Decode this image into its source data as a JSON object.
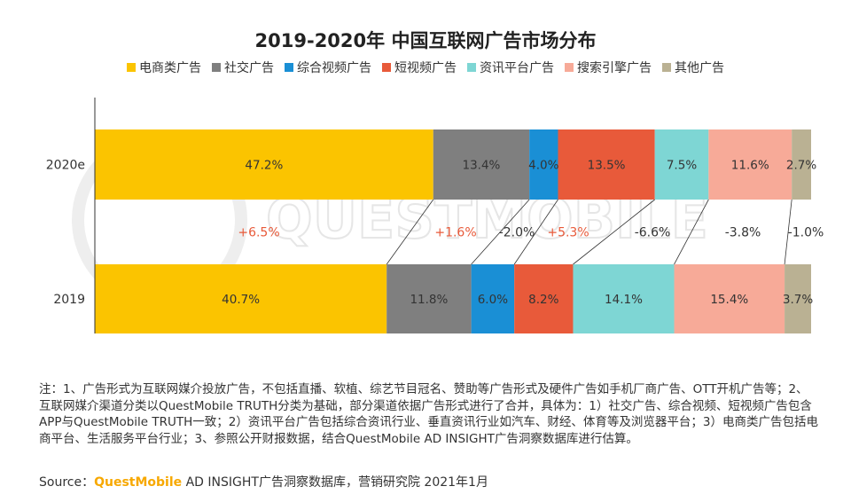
{
  "chart_data": {
    "type": "bar",
    "orientation": "horizontal",
    "stacked": true,
    "normalized": true,
    "title": "2019-2020年 中国互联网广告市场分布",
    "categories": [
      "2020e",
      "2019"
    ],
    "series": [
      {
        "name": "电商类广告",
        "color": "#fbc400",
        "values": [
          47.2,
          40.7
        ],
        "labels": [
          "47.2%",
          "40.7%"
        ]
      },
      {
        "name": "社交广告",
        "color": "#7f7f7f",
        "values": [
          13.4,
          11.8
        ],
        "labels": [
          "13.4%",
          "11.8%"
        ]
      },
      {
        "name": "综合视频广告",
        "color": "#1a8fd5",
        "values": [
          4.0,
          6.0
        ],
        "labels": [
          "4.0%",
          "6.0%"
        ]
      },
      {
        "name": "短视频广告",
        "color": "#e85a3a",
        "values": [
          13.5,
          8.2
        ],
        "labels": [
          "13.5%",
          "8.2%"
        ]
      },
      {
        "name": "资讯平台广告",
        "color": "#7ed6d4",
        "values": [
          7.5,
          14.1
        ],
        "labels": [
          "7.5%",
          "14.1%"
        ]
      },
      {
        "name": "搜索引擎广告",
        "color": "#f7aa98",
        "values": [
          11.6,
          15.4
        ],
        "labels": [
          "11.6%",
          "15.4%"
        ]
      },
      {
        "name": "其他广告",
        "color": "#bab193",
        "values": [
          2.7,
          3.7
        ],
        "labels": [
          "2.7%",
          "3.7%"
        ]
      }
    ],
    "changes": [
      {
        "label": "+6.5%",
        "color": "#e85a3a"
      },
      {
        "label": "+1.6%",
        "color": "#e85a3a"
      },
      {
        "label": "-2.0%",
        "color": "#333333"
      },
      {
        "label": "+5.3%",
        "color": "#e85a3a"
      },
      {
        "label": "-6.6%",
        "color": "#333333"
      },
      {
        "label": "-3.8%",
        "color": "#333333"
      },
      {
        "label": "-1.0%",
        "color": "#333333"
      }
    ]
  },
  "watermark": "QUESTMOBILE",
  "note": "注：1、广告形式为互联网媒介投放广告，不包括直播、软植、综艺节目冠名、赞助等广告形式及硬件广告如手机厂商广告、OTT开机广告等；2、互联网媒介渠道分类以QuestMobile TRUTH分类为基础，部分渠道依据广告形式进行了合并，具体为：1）社交广告、综合视频、短视频广告包含APP与QuestMobile TRUTH一致；2）资讯平台广告包括综合资讯行业、垂直资讯行业如汽车、财经、体育等及浏览器平台；3）电商类广告包括电商平台、生活服务平台行业；3、参照公开财报数据，结合QuestMobile AD INSIGHT广告洞察数据库进行估算。",
  "source": {
    "prefix": "Source：",
    "brand": "QuestMobile",
    "suffix": " AD INSIGHT广告洞察数据库，营销研究院 2021年1月"
  }
}
